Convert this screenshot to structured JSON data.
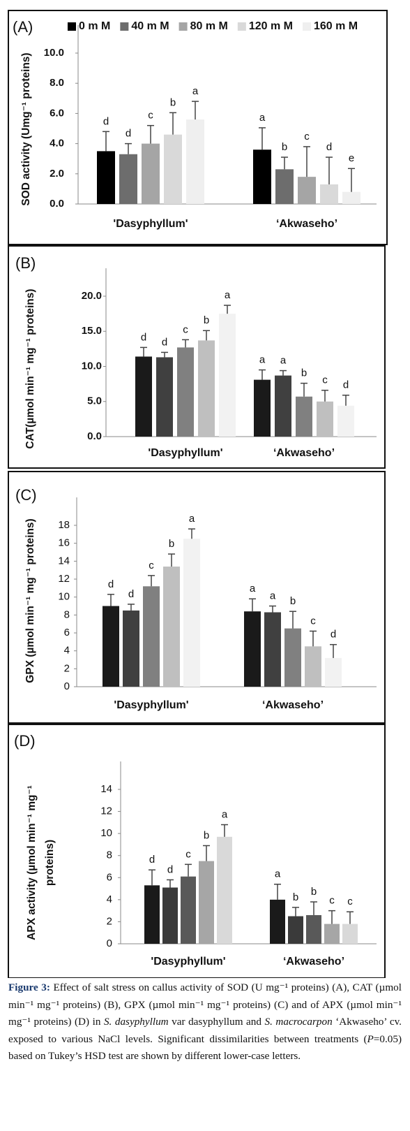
{
  "chart_data": [
    {
      "type": "bar",
      "panel_label": "(A)",
      "y_label": [
        "SOD activity (Umg⁻¹ proteins)"
      ],
      "categories": [
        "'Dasyphyllum'",
        "‘Akwaseho’"
      ],
      "series": [
        {
          "name": "0 m M",
          "color": "#000000",
          "values": [
            3.5,
            3.6
          ],
          "errors": [
            1.3,
            1.45
          ],
          "letters": [
            "d",
            "a"
          ]
        },
        {
          "name": "40 m M",
          "color": "#6d6d6d",
          "values": [
            3.3,
            2.3
          ],
          "errors": [
            0.7,
            0.8
          ],
          "letters": [
            "d",
            "b"
          ]
        },
        {
          "name": "80 m M",
          "color": "#a5a5a5",
          "values": [
            4.0,
            1.8
          ],
          "errors": [
            1.2,
            2.0
          ],
          "letters": [
            "c",
            "c"
          ]
        },
        {
          "name": "120 m M",
          "color": "#d9d9d9",
          "values": [
            4.6,
            1.3
          ],
          "errors": [
            1.45,
            1.8
          ],
          "letters": [
            "b",
            "d"
          ]
        },
        {
          "name": "160 m M",
          "color": "#efefef",
          "values": [
            5.6,
            0.8
          ],
          "errors": [
            1.2,
            1.55
          ],
          "letters": [
            "a",
            "e"
          ]
        }
      ],
      "ylim": [
        0,
        10
      ],
      "yticks": [
        {
          "value": 0,
          "label": "0.0"
        },
        {
          "value": 2,
          "label": "2.0"
        },
        {
          "value": 4,
          "label": "4.0"
        },
        {
          "value": 6,
          "label": "6.0"
        },
        {
          "value": 8,
          "label": "8.0"
        },
        {
          "value": 10,
          "label": "10.0"
        }
      ]
    },
    {
      "type": "bar",
      "panel_label": "(B)",
      "y_label": [
        "CAT(µmol min⁻¹ mg⁻¹ proteins)"
      ],
      "categories": [
        "'Dasyphyllum'",
        "‘Akwaseho’"
      ],
      "series": [
        {
          "color": "#1a1a1a",
          "values": [
            11.4,
            8.1
          ],
          "errors": [
            1.3,
            1.4
          ],
          "letters": [
            "d",
            "a"
          ]
        },
        {
          "color": "#404040",
          "values": [
            11.3,
            8.7
          ],
          "errors": [
            0.7,
            0.7
          ],
          "letters": [
            "d",
            "a"
          ]
        },
        {
          "color": "#808080",
          "values": [
            12.7,
            5.7
          ],
          "errors": [
            1.1,
            1.9
          ],
          "letters": [
            "c",
            "b"
          ]
        },
        {
          "color": "#bfbfbf",
          "values": [
            13.7,
            5.0
          ],
          "errors": [
            1.4,
            1.6
          ],
          "letters": [
            "b",
            "c"
          ]
        },
        {
          "color": "#f2f2f2",
          "values": [
            17.5,
            4.4
          ],
          "errors": [
            1.2,
            1.5
          ],
          "letters": [
            "a",
            "d"
          ]
        }
      ],
      "ylim": [
        0,
        20
      ],
      "yticks": [
        {
          "value": 0,
          "label": "0.0"
        },
        {
          "value": 5,
          "label": "5.0"
        },
        {
          "value": 10,
          "label": "10.0"
        },
        {
          "value": 15,
          "label": "15.0"
        },
        {
          "value": 20,
          "label": "20.0"
        }
      ]
    },
    {
      "type": "bar",
      "panel_label": "(C)",
      "y_label": [
        "GPX (µmol min⁻¹ mg⁻¹ proteins)"
      ],
      "categories": [
        "'Dasyphyllum'",
        "‘Akwaseho’"
      ],
      "series": [
        {
          "color": "#1a1a1a",
          "values": [
            9.0,
            8.4
          ],
          "errors": [
            1.3,
            1.4
          ],
          "letters": [
            "d",
            "a"
          ]
        },
        {
          "color": "#404040",
          "values": [
            8.5,
            8.3
          ],
          "errors": [
            0.7,
            0.7
          ],
          "letters": [
            "d",
            "a"
          ]
        },
        {
          "color": "#808080",
          "values": [
            11.2,
            6.5
          ],
          "errors": [
            1.2,
            1.9
          ],
          "letters": [
            "c",
            "b"
          ]
        },
        {
          "color": "#bfbfbf",
          "values": [
            13.4,
            4.5
          ],
          "errors": [
            1.4,
            1.7
          ],
          "letters": [
            "b",
            "c"
          ]
        },
        {
          "color": "#f2f2f2",
          "values": [
            16.5,
            3.2
          ],
          "errors": [
            1.1,
            1.5
          ],
          "letters": [
            "a",
            "d"
          ]
        }
      ],
      "ylim": [
        0,
        18
      ],
      "yticks": [
        0,
        2,
        4,
        6,
        8,
        10,
        12,
        14,
        16,
        18
      ]
    },
    {
      "type": "bar",
      "panel_label": "(D)",
      "y_label": [
        "APX activity (µmol min⁻¹ mg⁻¹",
        "proteins)"
      ],
      "categories": [
        "'Dasyphyllum'",
        "‘Akwaseho’"
      ],
      "series": [
        {
          "color": "#1a1a1a",
          "values": [
            5.3,
            4.0
          ],
          "errors": [
            1.4,
            1.4
          ],
          "letters": [
            "d",
            "a"
          ]
        },
        {
          "color": "#3a3a3a",
          "values": [
            5.1,
            2.5
          ],
          "errors": [
            0.7,
            0.8
          ],
          "letters": [
            "d",
            "b"
          ]
        },
        {
          "color": "#595959",
          "values": [
            6.1,
            2.6
          ],
          "errors": [
            1.1,
            1.2
          ],
          "letters": [
            "c",
            "b"
          ]
        },
        {
          "color": "#a6a6a6",
          "values": [
            7.5,
            1.8
          ],
          "errors": [
            1.4,
            1.2
          ],
          "letters": [
            "b",
            "c"
          ]
        },
        {
          "color": "#d9d9d9",
          "values": [
            9.7,
            1.8
          ],
          "errors": [
            1.1,
            1.1
          ],
          "letters": [
            "a",
            "c"
          ]
        }
      ],
      "ylim": [
        0,
        14
      ],
      "yticks": [
        0,
        2,
        4,
        6,
        8,
        10,
        12,
        14
      ]
    }
  ],
  "caption": {
    "runs": [
      {
        "text": "Figure 3:",
        "bold": true
      },
      {
        "text": " Effect of salt stress on callus activity of SOD (U mg⁻¹ proteins) (A), CAT (µmol min⁻¹ mg⁻¹ proteins) (B), GPX (µmol min⁻¹ mg⁻¹ proteins) (C) and of APX (µmol min⁻¹ mg⁻¹ proteins) (D) in "
      },
      {
        "text": "S. dasyphyllum",
        "italic": true
      },
      {
        "text": " var dasyphyllum and "
      },
      {
        "text": "S. macrocarpon",
        "italic": true
      },
      {
        "text": " ‘Akwaseho’ cv. exposed to various NaCl levels. Significant dissimilarities between treatments ("
      },
      {
        "text": "P",
        "italic": true
      },
      {
        "text": "=0.05) based on Tukey’s HSD test are shown by different lower-case letters."
      }
    ]
  }
}
